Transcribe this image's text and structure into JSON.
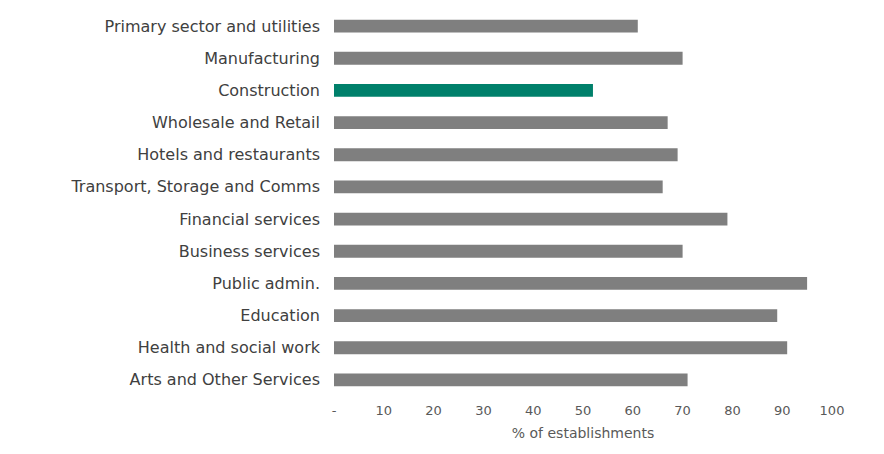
{
  "chart_data": {
    "type": "bar",
    "orientation": "horizontal",
    "categories": [
      "Primary sector and utilities",
      "Manufacturing",
      "Construction",
      "Wholesale and Retail",
      "Hotels and restaurants",
      "Transport, Storage and Comms",
      "Financial services",
      "Business services",
      "Public admin.",
      "Education",
      "Health and social work",
      "Arts and Other Services"
    ],
    "values": [
      61,
      70,
      52,
      67,
      69,
      66,
      79,
      70,
      95,
      89,
      91,
      71
    ],
    "colors": [
      "#7f7f7f",
      "#7f7f7f",
      "#00806b",
      "#7f7f7f",
      "#7f7f7f",
      "#7f7f7f",
      "#7f7f7f",
      "#7f7f7f",
      "#7f7f7f",
      "#7f7f7f",
      "#7f7f7f",
      "#7f7f7f"
    ],
    "x_label": "% of establishments",
    "xlim": [
      0,
      100
    ],
    "xticks": [
      {
        "value": 0,
        "label": "-"
      },
      10,
      20,
      30,
      40,
      50,
      60,
      70,
      80,
      90,
      100
    ],
    "grid": false
  }
}
